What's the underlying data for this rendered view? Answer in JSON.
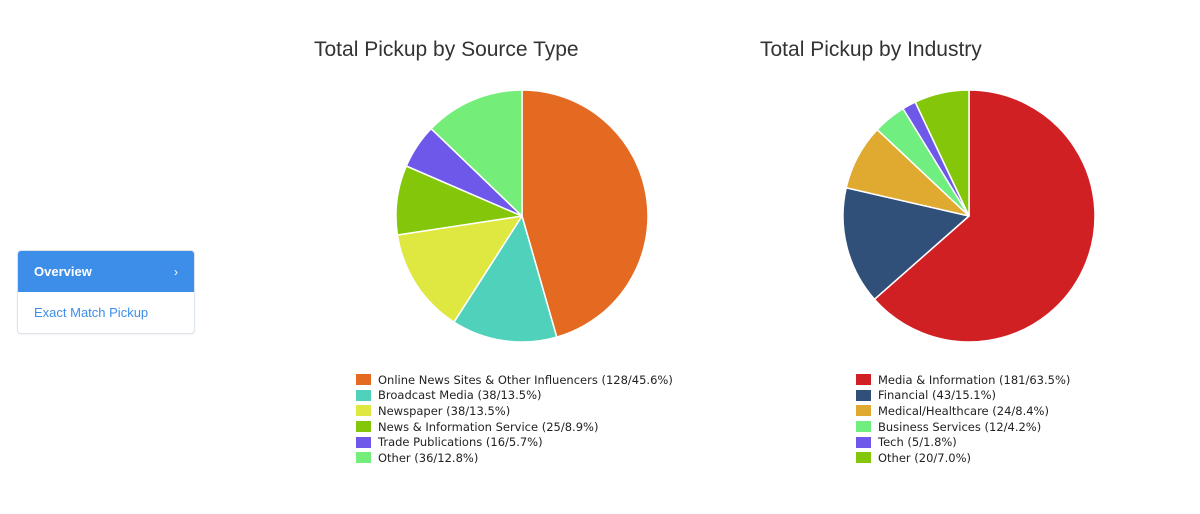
{
  "sidebar": {
    "items": [
      {
        "label": "Overview",
        "active": true
      },
      {
        "label": "Exact Match Pickup",
        "active": false
      }
    ],
    "chevron": "›"
  },
  "chart_data": [
    {
      "type": "pie",
      "title": "Total Pickup by Source Type",
      "categories": [
        "Online News Sites & Other Influencers (128/45.6%)",
        "Broadcast Media (38/13.5%)",
        "Newspaper (38/13.5%)",
        "News & Information Service (25/8.9%)",
        "Trade Publications (16/5.7%)",
        "Other (36/12.8%)"
      ],
      "values": [
        128,
        38,
        38,
        25,
        16,
        36
      ],
      "colors": [
        "#e46a22",
        "#4fd1bb",
        "#dfe840",
        "#84c70a",
        "#6e58ea",
        "#74ee78"
      ],
      "legend": "bottom"
    },
    {
      "type": "pie",
      "title": "Total Pickup by Industry",
      "categories": [
        "Media & Information (181/63.5%)",
        "Financial (43/15.1%)",
        "Medical/Healthcare (24/8.4%)",
        "Business Services (12/4.2%)",
        "Tech (5/1.8%)",
        "Other (20/7.0%)"
      ],
      "values": [
        181,
        43,
        24,
        12,
        5,
        20
      ],
      "colors": [
        "#d02024",
        "#30507a",
        "#e0aa30",
        "#70ee80",
        "#6e58ea",
        "#84c70a"
      ],
      "legend": "bottom"
    }
  ]
}
